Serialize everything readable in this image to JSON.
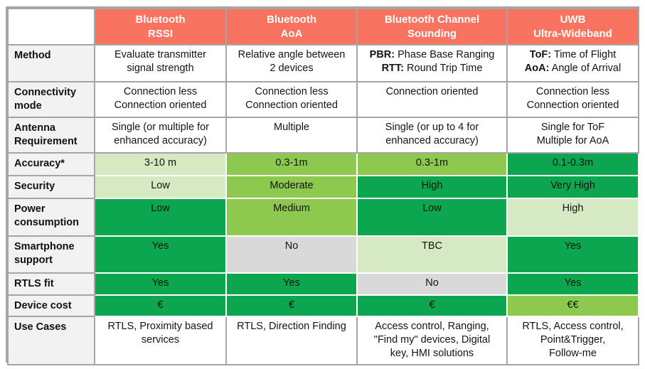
{
  "colors": {
    "header_bg": "#f8745e",
    "header_text": "#ffffff",
    "label_bg": "#f2f2f2",
    "border": "#a6a6a6",
    "light": "#d5e9c2",
    "medium": "#8cc94e",
    "dark": "#0ba64d",
    "gray": "#d9d9d9",
    "white": "#ffffff"
  },
  "table": {
    "corner_label": "",
    "columns": [
      {
        "key": "bluetooth-rssi",
        "lines": [
          "Bluetooth",
          "RSSI"
        ]
      },
      {
        "key": "bluetooth-aoa",
        "lines": [
          "Bluetooth",
          "AoA"
        ]
      },
      {
        "key": "bluetooth-channel-sounding",
        "lines": [
          "Bluetooth Channel",
          "Sounding"
        ]
      },
      {
        "key": "uwb",
        "lines": [
          "UWB",
          "Ultra-Wideband"
        ]
      }
    ],
    "rows": [
      {
        "key": "method",
        "label_lines": [
          "Method"
        ],
        "cells": [
          {
            "bg": "white",
            "lines": [
              {
                "t": "Evaluate transmitter"
              },
              {
                "t": "signal strength"
              }
            ]
          },
          {
            "bg": "white",
            "lines": [
              {
                "t": "Relative angle between"
              },
              {
                "t": "2 devices"
              }
            ]
          },
          {
            "bg": "white",
            "lines": [
              {
                "b": "PBR:",
                "t": "Phase Base Ranging"
              },
              {
                "b": "RTT:",
                "t": "Round Trip Time"
              }
            ]
          },
          {
            "bg": "white",
            "lines": [
              {
                "b": "ToF:",
                "t": "Time of Flight"
              },
              {
                "b": "AoA:",
                "t": "Angle of Arrival"
              }
            ]
          }
        ]
      },
      {
        "key": "connectivity-mode",
        "label_lines": [
          "Connectivity",
          "mode"
        ],
        "cells": [
          {
            "bg": "white",
            "lines": [
              {
                "t": "Connection less"
              },
              {
                "t": "Connection oriented"
              }
            ]
          },
          {
            "bg": "white",
            "lines": [
              {
                "t": "Connection less"
              },
              {
                "t": "Connection oriented"
              }
            ]
          },
          {
            "bg": "white",
            "lines": [
              {
                "t": "Connection oriented"
              }
            ]
          },
          {
            "bg": "white",
            "lines": [
              {
                "t": "Connection less"
              },
              {
                "t": "Connection oriented"
              }
            ]
          }
        ]
      },
      {
        "key": "antenna-requirement",
        "label_lines": [
          "Antenna",
          "Requirement"
        ],
        "cells": [
          {
            "bg": "white",
            "lines": [
              {
                "t": "Single (or multiple for"
              },
              {
                "t": "enhanced accuracy)"
              }
            ]
          },
          {
            "bg": "white",
            "lines": [
              {
                "t": "Multiple"
              }
            ]
          },
          {
            "bg": "white",
            "lines": [
              {
                "t": "Single (or up to 4 for"
              },
              {
                "t": "enhanced accuracy)"
              }
            ]
          },
          {
            "bg": "white",
            "lines": [
              {
                "t": "Single for ToF"
              },
              {
                "t": "Multiple for AoA"
              }
            ]
          }
        ]
      },
      {
        "key": "accuracy",
        "label_lines": [
          "Accuracy*"
        ],
        "cells": [
          {
            "bg": "light",
            "lines": [
              {
                "t": "3-10 m"
              }
            ]
          },
          {
            "bg": "medium",
            "lines": [
              {
                "t": "0.3-1m"
              }
            ]
          },
          {
            "bg": "medium",
            "lines": [
              {
                "t": "0.3-1m"
              }
            ]
          },
          {
            "bg": "dark",
            "lines": [
              {
                "t": "0.1-0.3m"
              }
            ]
          }
        ]
      },
      {
        "key": "security",
        "label_lines": [
          "Security"
        ],
        "cells": [
          {
            "bg": "light",
            "lines": [
              {
                "t": "Low"
              }
            ]
          },
          {
            "bg": "medium",
            "lines": [
              {
                "t": "Moderate"
              }
            ]
          },
          {
            "bg": "dark",
            "lines": [
              {
                "t": "High"
              }
            ]
          },
          {
            "bg": "dark",
            "lines": [
              {
                "t": "Very High"
              }
            ]
          }
        ]
      },
      {
        "key": "power-consumption",
        "label_lines": [
          "Power",
          "consumption"
        ],
        "cells": [
          {
            "bg": "dark",
            "lines": [
              {
                "t": "Low"
              }
            ]
          },
          {
            "bg": "medium",
            "lines": [
              {
                "t": "Medium"
              }
            ]
          },
          {
            "bg": "dark",
            "lines": [
              {
                "t": "Low"
              }
            ]
          },
          {
            "bg": "light",
            "lines": [
              {
                "t": "High"
              }
            ]
          }
        ]
      },
      {
        "key": "smartphone-support",
        "label_lines": [
          "Smartphone",
          "support"
        ],
        "cells": [
          {
            "bg": "dark",
            "lines": [
              {
                "t": "Yes"
              }
            ]
          },
          {
            "bg": "gray",
            "lines": [
              {
                "t": "No"
              }
            ]
          },
          {
            "bg": "light",
            "lines": [
              {
                "t": "TBC"
              }
            ]
          },
          {
            "bg": "dark",
            "lines": [
              {
                "t": "Yes"
              }
            ]
          }
        ]
      },
      {
        "key": "rtls-fit",
        "label_lines": [
          "RTLS fit"
        ],
        "cells": [
          {
            "bg": "dark",
            "lines": [
              {
                "t": "Yes"
              }
            ]
          },
          {
            "bg": "dark",
            "lines": [
              {
                "t": "Yes"
              }
            ]
          },
          {
            "bg": "gray",
            "lines": [
              {
                "t": "No"
              }
            ]
          },
          {
            "bg": "dark",
            "lines": [
              {
                "t": "Yes"
              }
            ]
          }
        ]
      },
      {
        "key": "device-cost",
        "label_lines": [
          "Device cost"
        ],
        "cells": [
          {
            "bg": "dark",
            "lines": [
              {
                "t": "€"
              }
            ]
          },
          {
            "bg": "dark",
            "lines": [
              {
                "t": "€"
              }
            ]
          },
          {
            "bg": "dark",
            "lines": [
              {
                "t": "€"
              }
            ]
          },
          {
            "bg": "medium",
            "lines": [
              {
                "t": "€€"
              }
            ]
          }
        ]
      },
      {
        "key": "use-cases",
        "label_lines": [
          "Use Cases"
        ],
        "cells": [
          {
            "bg": "white",
            "lines": [
              {
                "t": "RTLS, Proximity based"
              },
              {
                "t": "services"
              }
            ]
          },
          {
            "bg": "white",
            "lines": [
              {
                "t": "RTLS, Direction Finding"
              }
            ]
          },
          {
            "bg": "white",
            "lines": [
              {
                "t": "Access control, Ranging,"
              },
              {
                "t": "\"Find my\" devices, Digital"
              },
              {
                "t": "key, HMI solutions"
              }
            ]
          },
          {
            "bg": "white",
            "lines": [
              {
                "t": "RTLS, Access control,"
              },
              {
                "t": "Point&Trigger,"
              },
              {
                "t": "Follow-me"
              }
            ]
          }
        ]
      }
    ]
  }
}
